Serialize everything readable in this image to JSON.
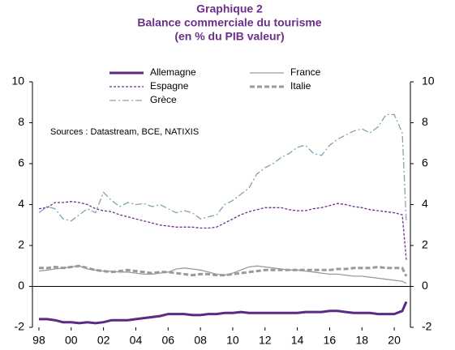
{
  "chart_data": {
    "type": "line",
    "title": [
      "Graphique 2",
      "Balance commerciale du tourisme",
      "(en % du PIB valeur)"
    ],
    "annotation": "Sources : Datastream,  BCE, NATIXIS",
    "x": [
      1998,
      1998.5,
      1999,
      1999.5,
      2000,
      2000.5,
      2001,
      2001.5,
      2002,
      2002.5,
      2003,
      2003.5,
      2004,
      2004.5,
      2005,
      2005.5,
      2006,
      2006.5,
      2007,
      2007.5,
      2008,
      2008.5,
      2009,
      2009.5,
      2010,
      2010.5,
      2011,
      2011.5,
      2012,
      2012.5,
      2013,
      2013.5,
      2014,
      2014.5,
      2015,
      2015.5,
      2016,
      2016.5,
      2017,
      2017.5,
      2018,
      2018.5,
      2019,
      2019.5,
      2020,
      2020.5,
      2020.75
    ],
    "series": [
      {
        "name": "Allemagne",
        "color": "#5b2a86",
        "width": 3,
        "dash": "none",
        "values": [
          -1.6,
          -1.6,
          -1.65,
          -1.75,
          -1.75,
          -1.8,
          -1.75,
          -1.8,
          -1.75,
          -1.65,
          -1.65,
          -1.65,
          -1.6,
          -1.55,
          -1.5,
          -1.45,
          -1.35,
          -1.35,
          -1.35,
          -1.4,
          -1.4,
          -1.35,
          -1.35,
          -1.3,
          -1.3,
          -1.25,
          -1.3,
          -1.3,
          -1.3,
          -1.3,
          -1.3,
          -1.3,
          -1.3,
          -1.25,
          -1.25,
          -1.25,
          -1.2,
          -1.2,
          -1.25,
          -1.3,
          -1.3,
          -1.3,
          -1.35,
          -1.35,
          -1.35,
          -1.2,
          -0.75
        ]
      },
      {
        "name": "France",
        "color": "#9a9a9a",
        "width": 1.3,
        "dash": "none",
        "values": [
          0.75,
          0.8,
          0.85,
          0.9,
          0.95,
          1.0,
          0.85,
          0.8,
          0.75,
          0.75,
          0.7,
          0.7,
          0.65,
          0.6,
          0.6,
          0.65,
          0.7,
          0.85,
          0.9,
          0.85,
          0.8,
          0.7,
          0.6,
          0.55,
          0.65,
          0.8,
          0.95,
          1.0,
          0.95,
          0.9,
          0.85,
          0.8,
          0.8,
          0.75,
          0.7,
          0.65,
          0.6,
          0.6,
          0.55,
          0.5,
          0.5,
          0.45,
          0.4,
          0.35,
          0.3,
          0.25,
          0.15
        ]
      },
      {
        "name": "Espagne",
        "color": "#6b2f8a",
        "width": 1.3,
        "dash": "3,2",
        "values": [
          3.8,
          3.85,
          4.1,
          4.1,
          4.15,
          4.1,
          4.0,
          3.8,
          3.7,
          3.65,
          3.5,
          3.4,
          3.3,
          3.2,
          3.1,
          3.0,
          2.95,
          2.9,
          2.9,
          2.9,
          2.85,
          2.85,
          2.9,
          3.1,
          3.3,
          3.5,
          3.65,
          3.75,
          3.85,
          3.85,
          3.85,
          3.75,
          3.7,
          3.7,
          3.8,
          3.85,
          3.95,
          4.05,
          4.0,
          3.9,
          3.85,
          3.75,
          3.7,
          3.65,
          3.6,
          3.5,
          1.3
        ]
      },
      {
        "name": "Italie",
        "color": "#9a9a9a",
        "width": 3,
        "dash": "6,3",
        "values": [
          0.9,
          0.9,
          0.95,
          0.9,
          0.95,
          1.0,
          0.9,
          0.8,
          0.75,
          0.7,
          0.75,
          0.8,
          0.75,
          0.7,
          0.65,
          0.7,
          0.7,
          0.65,
          0.6,
          0.55,
          0.6,
          0.6,
          0.55,
          0.55,
          0.6,
          0.65,
          0.7,
          0.75,
          0.8,
          0.8,
          0.8,
          0.8,
          0.8,
          0.8,
          0.8,
          0.8,
          0.8,
          0.85,
          0.85,
          0.9,
          0.9,
          0.9,
          0.95,
          0.9,
          0.9,
          0.9,
          0.5
        ]
      },
      {
        "name": "Grèce",
        "color": "#7fa3b5",
        "width": 1.3,
        "dash": "8,3,2,3",
        "values": [
          3.6,
          3.9,
          3.8,
          3.3,
          3.2,
          3.5,
          3.8,
          3.6,
          4.6,
          4.2,
          3.9,
          4.1,
          4.0,
          4.05,
          3.9,
          4.0,
          3.8,
          3.6,
          3.7,
          3.6,
          3.3,
          3.4,
          3.5,
          4.0,
          4.2,
          4.5,
          4.8,
          5.5,
          5.8,
          6.0,
          6.3,
          6.5,
          6.8,
          6.9,
          6.5,
          6.4,
          6.9,
          7.2,
          7.4,
          7.6,
          7.7,
          7.5,
          7.8,
          8.4,
          8.4,
          7.5,
          3.1
        ]
      }
    ],
    "xlim": [
      1997.6,
      2021
    ],
    "xticks": [
      {
        "value": 1998,
        "label": "98"
      },
      {
        "value": 2000,
        "label": "00"
      },
      {
        "value": 2002,
        "label": "02"
      },
      {
        "value": 2004,
        "label": "04"
      },
      {
        "value": 2006,
        "label": "06"
      },
      {
        "value": 2008,
        "label": "08"
      },
      {
        "value": 2010,
        "label": "10"
      },
      {
        "value": 2012,
        "label": "12"
      },
      {
        "value": 2014,
        "label": "14"
      },
      {
        "value": 2016,
        "label": "16"
      },
      {
        "value": 2018,
        "label": "18"
      },
      {
        "value": 2020,
        "label": "20"
      }
    ],
    "ylim": [
      -2,
      10
    ],
    "yticks": [
      -2,
      0,
      2,
      4,
      6,
      8,
      10
    ],
    "y2lim": [
      -2,
      10
    ],
    "y2ticks": [
      -2,
      0,
      2,
      4,
      6,
      8,
      10
    ],
    "legend": "top",
    "grid": false
  }
}
